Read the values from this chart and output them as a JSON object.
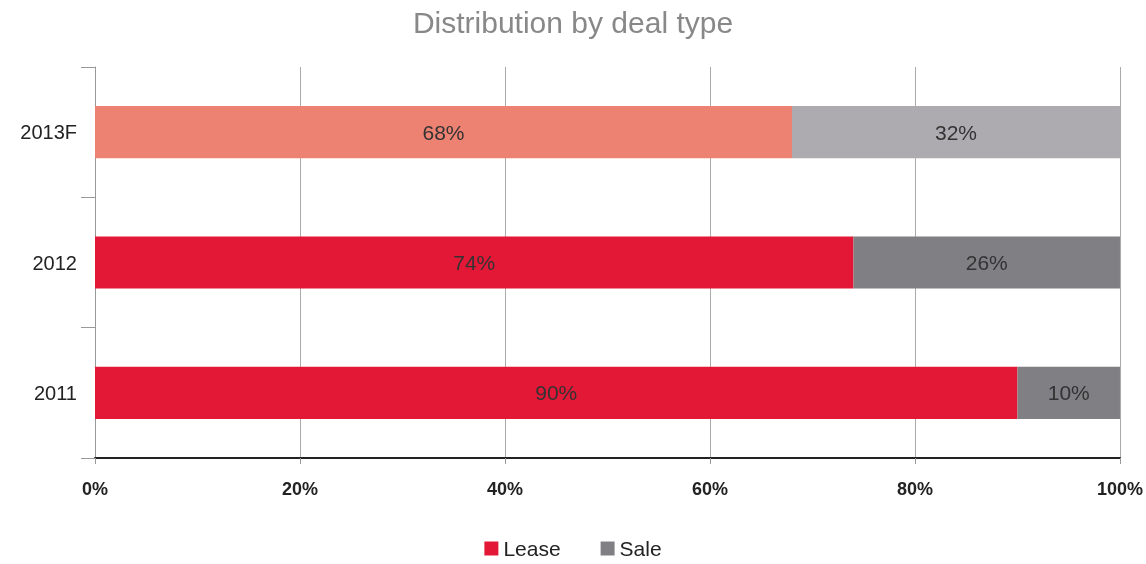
{
  "chart_data": {
    "type": "bar",
    "orientation": "horizontal",
    "stacked": true,
    "title": "Distribution by deal type",
    "categories": [
      "2013F",
      "2012",
      "2011"
    ],
    "series": [
      {
        "name": "Lease",
        "color": "#e31837",
        "colors": [
          "#ee8272",
          "#e31837",
          "#e31837"
        ],
        "values": [
          68,
          74,
          90
        ],
        "value_labels": [
          "68%",
          "74%",
          "90%"
        ]
      },
      {
        "name": "Sale",
        "color": "#807f83",
        "colors": [
          "#adabaf",
          "#807f83",
          "#807f83"
        ],
        "values": [
          32,
          26,
          10
        ],
        "value_labels": [
          "32%",
          "26%",
          "10%"
        ]
      }
    ],
    "xlim": [
      0,
      100
    ],
    "xticks": [
      {
        "value": 0,
        "label": "0%"
      },
      {
        "value": 20,
        "label": "20%"
      },
      {
        "value": 40,
        "label": "40%"
      },
      {
        "value": 60,
        "label": "60%"
      },
      {
        "value": 80,
        "label": "80%"
      },
      {
        "value": 100,
        "label": "100%"
      }
    ],
    "grid": "x",
    "legend": "bottom"
  }
}
